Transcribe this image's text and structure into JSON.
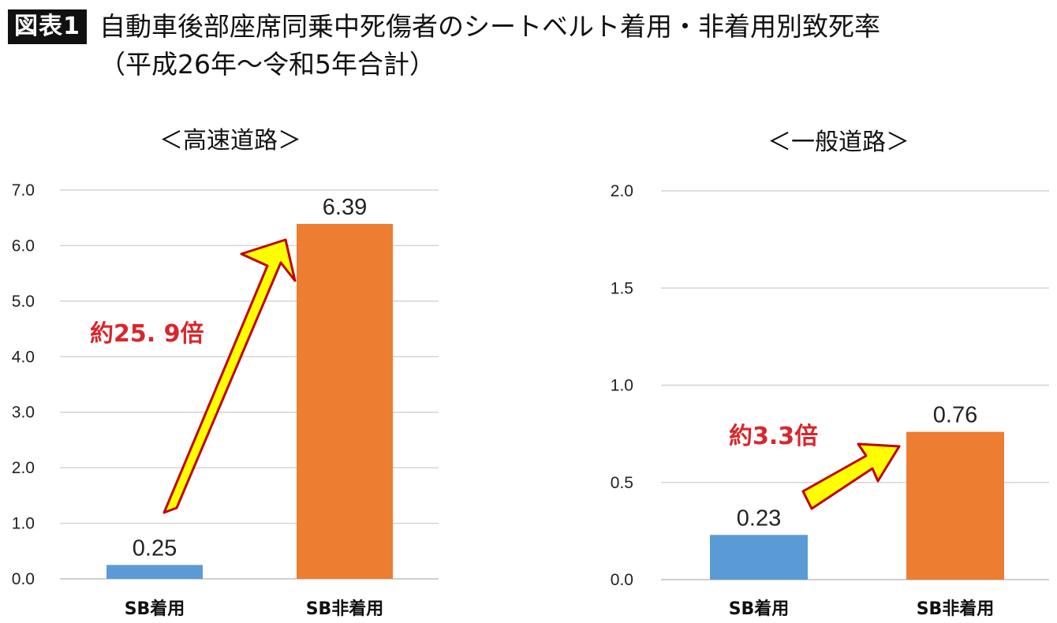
{
  "header": {
    "badge": "図表1",
    "title_line1": "自動車後部座席同乗中死傷者のシートベルト着用・非着用別致死率",
    "title_line2": "（平成26年～令和5年合計）"
  },
  "colors": {
    "seatbelt_on": "#5b9bd5",
    "seatbelt_off": "#ed7d31",
    "arrow_fill": "#ffff00",
    "arrow_stroke": "#c00000",
    "annotation": "#d9262c"
  },
  "chart_data": [
    {
      "type": "bar",
      "title": "＜高速道路＞",
      "categories": [
        "SB着用",
        "SB非着用"
      ],
      "values": [
        0.25,
        6.39
      ],
      "value_labels": [
        "0.25",
        "6.39"
      ],
      "ylim": [
        0,
        7
      ],
      "yticks": [
        "0.0",
        "1.0",
        "2.0",
        "3.0",
        "4.0",
        "5.0",
        "6.0",
        "7.0"
      ],
      "grid": true,
      "annotation": "約25. 9倍"
    },
    {
      "type": "bar",
      "title": "＜一般道路＞",
      "categories": [
        "SB着用",
        "SB非着用"
      ],
      "values": [
        0.23,
        0.76
      ],
      "value_labels": [
        "0.23",
        "0.76"
      ],
      "ylim": [
        0,
        2
      ],
      "yticks": [
        "0.0",
        "0.5",
        "1.0",
        "1.5",
        "2.0"
      ],
      "grid": true,
      "annotation": "約3.3倍"
    }
  ]
}
